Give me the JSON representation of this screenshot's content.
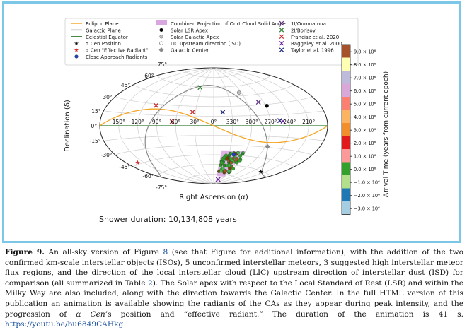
{
  "chart_data": {
    "type": "scatter",
    "projection": "aitoff (all-sky)",
    "xlabel": "Right Ascension (α)",
    "ylabel": "Declination (δ)",
    "ra_ticks": [
      "150°",
      "120°",
      "90°",
      "60°",
      "30°",
      "0°",
      "330°",
      "300°",
      "270°",
      "240°",
      "210°"
    ],
    "dec_ticks": [
      "75°",
      "60°",
      "45°",
      "30°",
      "15°",
      "0°",
      "-15°",
      "-30°",
      "-45°",
      "-60°",
      "-75°"
    ],
    "legend_left": [
      {
        "label": "Ecliptic Plane",
        "symbol": "line",
        "color": "#f5a623"
      },
      {
        "label": "Galactic Plane",
        "symbol": "line",
        "color": "#888888"
      },
      {
        "label": "Celestial Equator",
        "symbol": "line",
        "color": "#2e7d32"
      },
      {
        "label": "α Cen Position",
        "symbol": "star",
        "color": "#111111"
      },
      {
        "label": "α Cen \"Effective Radiant\"",
        "symbol": "star",
        "color": "#d32f2f"
      },
      {
        "label": "Close Approach Radiants",
        "symbol": "dot",
        "color": "#1f3fbf"
      }
    ],
    "legend_middle": [
      {
        "label": "Combined Projection of Oort Cloud Solid Angle",
        "symbol": "patch",
        "color": "#d9a6e0"
      },
      {
        "label": "Solar LSR Apex",
        "symbol": "dot",
        "color": "#000000"
      },
      {
        "label": "Solar Galactic Apex",
        "symbol": "dot",
        "color": "#bdbdbd"
      },
      {
        "label": "LIC upstream direction (ISD)",
        "symbol": "circle",
        "color": "#ffffff"
      },
      {
        "label": "Galactic Center",
        "symbol": "diamond",
        "color": "#8a8a8a"
      }
    ],
    "legend_right": [
      {
        "label": "1I/Oumuamua",
        "symbol": "x",
        "color": "#5b2a86"
      },
      {
        "label": "2I/Borisov",
        "symbol": "x",
        "color": "#2e7d32"
      },
      {
        "label": "Francisz et al. 2020",
        "symbol": "x",
        "color": "#c62828"
      },
      {
        "label": "Baggaley et al. 2000",
        "symbol": "x",
        "color": "#6a1b9a"
      },
      {
        "label": "Taylor et al. 1996",
        "symbol": "x",
        "color": "#1a237e"
      }
    ],
    "colorbar": {
      "label": "Arrival Time (years from current epoch)",
      "ticks": [
        "9.0 × 10⁶",
        "8.0 × 10⁶",
        "7.0 × 10⁶",
        "6.0 × 10⁶",
        "5.0 × 10⁶",
        "4.0 × 10⁶",
        "3.0 × 10⁶",
        "2.0 × 10⁶",
        "1.0 × 10⁶",
        "0.0 × 10⁶",
        "−1.0 × 10⁶",
        "−2.0 × 10⁶",
        "−3.0 × 10⁶"
      ],
      "colors": [
        "#a5522a",
        "#ffffb3",
        "#bebada",
        "#d9a8d8",
        "#fb8072",
        "#fdb462",
        "#f28e2b",
        "#e31a1c",
        "#fb9a99",
        "#33a02c",
        "#b2df8a",
        "#1f78b4",
        "#a6cee3"
      ]
    },
    "markers": [
      {
        "name": "1I/Oumuamua",
        "ra": 279,
        "dec": 34,
        "symbol": "x"
      },
      {
        "name": "2I/Borisov",
        "ra": 35,
        "dec": 59,
        "symbol": "x"
      },
      {
        "name": "Francisz et al. 2020",
        "ra": 100,
        "dec": 28,
        "symbol": "x"
      },
      {
        "name": "Francisz et al. 2020",
        "ra": 66,
        "dec": 6,
        "symbol": "x"
      },
      {
        "name": "Francisz et al. 2020",
        "ra": 35,
        "dec": 21,
        "symbol": "x"
      },
      {
        "name": "Baggaley et al. 2000",
        "ra": 320,
        "dec": -83,
        "symbol": "x"
      },
      {
        "name": "Baggaley et al. 2000",
        "ra": 250,
        "dec": 6,
        "symbol": "x"
      },
      {
        "name": "Taylor et al. 1996",
        "ra": 345,
        "dec": 21,
        "symbol": "x"
      },
      {
        "name": "Taylor et al. 1996",
        "ra": 255,
        "dec": 7,
        "symbol": "x"
      },
      {
        "name": "Solar LSR Apex",
        "ra": 268,
        "dec": 28,
        "symbol": "dot"
      },
      {
        "name": "Solar Galactic Apex",
        "ra": 305,
        "dec": 50,
        "symbol": "dot"
      },
      {
        "name": "Galactic Center",
        "ra": 266,
        "dec": -29,
        "symbol": "diamond"
      },
      {
        "name": "α Cen Position",
        "ra": 220,
        "dec": -61,
        "symbol": "star"
      },
      {
        "name": "α Cen \"Effective Radiant\"",
        "ra": 160,
        "dec": -43,
        "symbol": "star"
      },
      {
        "name": "Close Approach Radiant",
        "ra": 320,
        "dec": -44,
        "symbol": "dot"
      }
    ],
    "shower_duration": "Shower duration: 10,134,808 years"
  },
  "caption": {
    "label": "Figure 9.",
    "seg1": " An all-sky version of Figure ",
    "fig_ref": "8",
    "seg2": " (see that Figure for additional information), with the addition of the two confirmed km-scale interstellar objects (ISOs), 5 unconfirmed interstellar meteors, 3 suggested high interstellar meteor flux regions, and the direction of the local interstellar cloud (LIC) upstream direction of interstellar dust (ISD) for comparison (all summarized in Table ",
    "table_ref": "2",
    "seg3": "). The Solar apex with respect to the Local Standard of Rest (LSR) and within the Milky Way are also included, along with the direction towards the Galactic Center. In the full HTML version of this publication an animation is available showing the radiants of the CAs as they appear during peak intensity, and the progression of ",
    "acen": "α Cen",
    "seg4": "’s position and “effective radiant.” The duration of the animation is 41 s. ",
    "url": "https://youtu.be/bu6849CAHkg"
  }
}
